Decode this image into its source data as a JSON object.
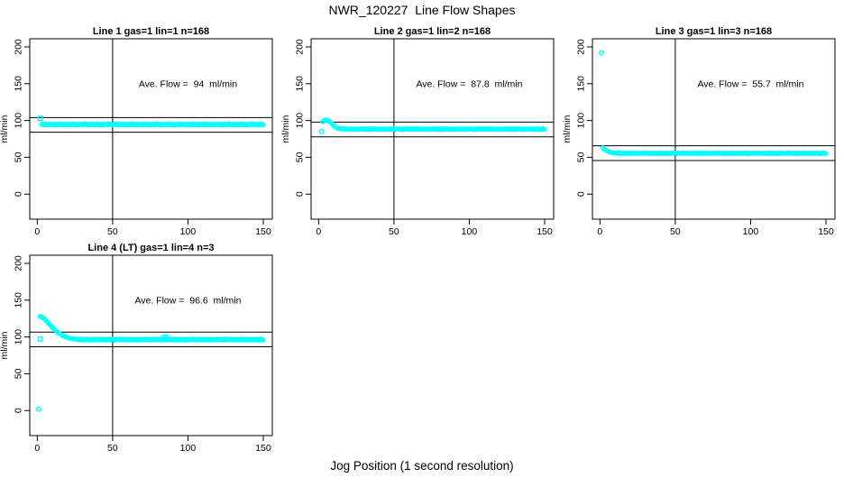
{
  "page": {
    "title": "NWR_120227  Line Flow Shapes",
    "xlabel": "Jog Position (1 second resolution)",
    "background": "#ffffff",
    "line_color": "#000000",
    "point_color": "#00ffff"
  },
  "chart_data": [
    {
      "type": "scatter",
      "title": "Line 1 gas=1 lin=1 n=168",
      "annotation": "Ave. Flow =  94  ml/min",
      "ave_flow": 94,
      "ylabel": "ml/min",
      "xlim": [
        -5,
        156
      ],
      "ylim": [
        -34,
        211
      ],
      "x_ticks": [
        0,
        50,
        100,
        150
      ],
      "y_ticks": [
        0,
        50,
        100,
        150,
        200
      ],
      "vline": 50,
      "hlines": [
        104,
        84
      ],
      "annotation_pos": {
        "x": 100,
        "y": 150
      },
      "singles": [
        {
          "x": 2,
          "y": 103,
          "marker": "square"
        }
      ],
      "series": {
        "x_start": 3,
        "x_step": 1,
        "y": [
          95,
          94.3,
          95.3,
          94,
          94.7,
          95.4,
          94.1,
          94.8,
          93.8,
          95.1,
          94.6,
          94.2,
          95.5,
          94.4,
          94.9,
          93.9,
          95,
          94.3,
          95.3,
          94,
          94.7,
          95.4,
          94.1,
          94.8,
          93.8,
          95.1,
          94.6,
          94.2,
          95.5,
          94.4,
          94.9,
          93.9,
          95,
          94.3,
          95.3,
          94,
          94.7,
          95.4,
          94.1,
          94.8,
          93.8,
          95.1,
          94.6,
          94.2,
          95.5,
          94.4,
          94.9,
          93.9,
          95,
          94.3,
          95.3,
          94,
          94.7,
          95.4,
          94.1,
          94.8,
          93.8,
          95.1,
          94.6,
          94.2,
          95.5,
          94.4,
          94.9,
          93.9,
          95,
          94.3,
          95.3,
          94,
          94.7,
          95.4,
          94.1,
          94.8,
          93.8,
          95.1,
          94.6,
          94.2,
          95.5,
          94.4,
          94.9,
          93.9,
          95,
          94.3,
          95.3,
          94,
          94.7,
          95.4,
          94.1,
          94.8,
          93.8,
          95.1,
          94.6,
          94.2,
          95.5,
          94.4,
          94.9,
          93.9,
          95,
          94.3,
          95.3,
          94,
          94.7,
          95.4,
          94.1,
          94.8,
          93.8,
          95.1,
          94.6,
          94.2,
          95.5,
          94.4,
          94.9,
          93.9,
          95,
          94.3,
          95.3,
          94,
          94.7,
          95.4,
          94.1,
          94.8,
          93.8,
          95.1,
          94.6,
          94.2,
          95.5,
          94.4,
          94.9,
          93.9,
          95,
          94.3,
          95.3,
          94,
          94.7,
          95.4,
          94.1,
          94.8,
          93.8,
          95.1,
          94.6,
          94.2,
          95.5,
          94.4,
          94.9,
          93.9,
          95,
          94.3,
          95.3,
          94
        ]
      }
    },
    {
      "type": "scatter",
      "title": "Line 2 gas=1 lin=2 n=168",
      "annotation": "Ave. Flow =  87.8  ml/min",
      "ave_flow": 87.8,
      "ylabel": "ml/min",
      "xlim": [
        -5,
        156
      ],
      "ylim": [
        -34,
        211
      ],
      "x_ticks": [
        0,
        50,
        100,
        150
      ],
      "y_ticks": [
        0,
        50,
        100,
        150,
        200
      ],
      "vline": 50,
      "hlines": [
        97.8,
        77.8
      ],
      "annotation_pos": {
        "x": 100,
        "y": 150
      },
      "singles": [
        {
          "x": 2,
          "y": 85,
          "marker": "circle"
        }
      ],
      "series": {
        "x_start": 3,
        "x_step": 1,
        "y": [
          98,
          100.2,
          100.8,
          100.4,
          99.3,
          97.5,
          95.4,
          93.3,
          91.6,
          90.3,
          89.4,
          88.9,
          88.6,
          88.6,
          88.1,
          88.9,
          87.8,
          88.4,
          89,
          87.9,
          88.5,
          87.7,
          88.7,
          88.3,
          88,
          89,
          88.2,
          88.6,
          87.8,
          88.6,
          88.1,
          88.9,
          87.8,
          88.4,
          89,
          87.9,
          88.5,
          87.7,
          88.7,
          88.3,
          88,
          89,
          88.2,
          88.6,
          87.8,
          88.6,
          88.1,
          88.9,
          87.8,
          88.4,
          89,
          87.9,
          88.5,
          87.7,
          88.7,
          88.3,
          88,
          89,
          88.2,
          88.6,
          87.8,
          88.6,
          88.1,
          88.9,
          87.8,
          88.4,
          89,
          87.9,
          88.5,
          87.7,
          88.7,
          88.3,
          88,
          89,
          88.2,
          88.6,
          87.8,
          88.6,
          88.1,
          88.9,
          87.8,
          88.4,
          89,
          87.9,
          88.5,
          87.7,
          88.7,
          88.3,
          88,
          89,
          88.2,
          88.6,
          87.8,
          88.6,
          88.1,
          88.9,
          87.8,
          88.4,
          89,
          87.9,
          88.5,
          87.7,
          88.7,
          88.3,
          88,
          89,
          88.2,
          88.6,
          87.8,
          88.6,
          88.1,
          88.9,
          87.8,
          88.4,
          89,
          87.9,
          88.5,
          87.7,
          88.7,
          88.3,
          88,
          89,
          88.2,
          88.6,
          87.8,
          88.6,
          88.1,
          88.9,
          87.8,
          88.4,
          89,
          87.9,
          88.5,
          87.7,
          88.7,
          88.3,
          88,
          89,
          88.2,
          88.6,
          87.8,
          88.6,
          88.1,
          88.9,
          87.8,
          88.4,
          89,
          87.9
        ]
      }
    },
    {
      "type": "scatter",
      "title": "Line 3 gas=1 lin=3 n=168",
      "annotation": "Ave. Flow =  55.7  ml/min",
      "ave_flow": 55.7,
      "ylabel": "ml/min",
      "xlim": [
        -5,
        156
      ],
      "ylim": [
        -34,
        211
      ],
      "x_ticks": [
        0,
        50,
        100,
        150
      ],
      "y_ticks": [
        0,
        50,
        100,
        150,
        200
      ],
      "vline": 50,
      "hlines": [
        65.7,
        45.7
      ],
      "annotation_pos": {
        "x": 100,
        "y": 150
      },
      "singles": [
        {
          "x": 1,
          "y": 192,
          "marker": "circle"
        }
      ],
      "series": {
        "x_start": 2,
        "x_step": 1,
        "y": [
          63,
          61.2,
          59.8,
          58.6,
          57.6,
          56.9,
          56.3,
          55.9,
          55.7,
          55.8,
          55.3,
          56,
          55.1,
          55.6,
          56.1,
          55.2,
          55.7,
          55,
          55.9,
          55.5,
          55.2,
          56.1,
          55.4,
          55.8,
          55.1,
          55.8,
          55.3,
          56,
          55.1,
          55.6,
          56.1,
          55.2,
          55.7,
          55,
          55.9,
          55.5,
          55.2,
          56.1,
          55.4,
          55.8,
          55.1,
          55.8,
          55.3,
          56,
          55.1,
          55.6,
          56.1,
          55.2,
          55.7,
          55,
          55.9,
          55.5,
          55.2,
          56.1,
          55.4,
          55.8,
          55.1,
          55.8,
          55.3,
          56,
          55.1,
          55.6,
          56.1,
          55.2,
          55.7,
          55,
          55.9,
          55.5,
          55.2,
          56.1,
          55.4,
          55.8,
          55.1,
          55.8,
          55.3,
          56,
          55.1,
          55.6,
          56.1,
          55.2,
          55.7,
          55,
          55.9,
          55.5,
          55.2,
          56.1,
          55.4,
          55.8,
          55.1,
          55.8,
          55.3,
          56,
          55.1,
          55.6,
          56.1,
          55.2,
          55.7,
          55,
          55.9,
          55.5,
          55.2,
          56.1,
          55.4,
          55.8,
          55.1,
          55.8,
          55.3,
          56,
          55.1,
          55.6,
          56.1,
          55.2,
          55.7,
          55,
          55.9,
          55.5,
          55.2,
          56.1,
          55.4,
          55.8,
          55.1,
          55.8,
          55.3,
          56,
          55.1,
          55.6,
          56.1,
          55.2,
          55.7,
          55,
          55.9,
          55.5,
          55.2,
          56.1,
          55.4,
          55.8,
          55.1,
          55.8,
          55.3,
          56,
          55.1,
          55.6,
          56.1,
          55.2,
          55.7,
          55,
          55.9,
          55.5,
          55.2
        ]
      }
    },
    {
      "type": "scatter",
      "title": "Line 4 (LT) gas=1 lin=4 n=3",
      "annotation": "Ave. Flow =  96.6  ml/min",
      "ave_flow": 96.6,
      "ylabel": "ml/min",
      "xlim": [
        -5,
        156
      ],
      "ylim": [
        -34,
        211
      ],
      "x_ticks": [
        0,
        50,
        100,
        150
      ],
      "y_ticks": [
        0,
        50,
        100,
        150,
        200
      ],
      "vline": 50,
      "hlines": [
        106.6,
        86.6
      ],
      "annotation_pos": {
        "x": 100,
        "y": 150
      },
      "singles": [
        {
          "x": 1,
          "y": 2,
          "marker": "circle"
        },
        {
          "x": 2,
          "y": 97,
          "marker": "square"
        },
        {
          "x": 84,
          "y": 99.6,
          "marker": "circle"
        },
        {
          "x": 85,
          "y": 100.2,
          "marker": "circle"
        },
        {
          "x": 86,
          "y": 99.4,
          "marker": "circle"
        }
      ],
      "series": {
        "x_start": 2,
        "x_step": 1,
        "y": [
          128,
          127.2,
          125.8,
          124,
          122,
          119.8,
          117.6,
          115.4,
          113.2,
          111.1,
          109.2,
          107.4,
          105.8,
          104.3,
          103,
          101.9,
          100.9,
          100.1,
          99.4,
          98.8,
          98.3,
          97.9,
          97.5,
          97.2,
          97,
          96.9,
          96,
          97.2,
          95.7,
          96.6,
          97.3,
          95.9,
          96.7,
          95.5,
          97,
          96.4,
          96,
          97.4,
          96.2,
          96.8,
          95.6,
          96.9,
          96,
          97.2,
          95.7,
          96.6,
          97.3,
          95.9,
          96.7,
          95.5,
          97,
          96.4,
          96,
          97.4,
          96.2,
          96.8,
          95.6,
          96.9,
          96,
          97.2,
          95.7,
          96.6,
          97.3,
          95.9,
          96.7,
          95.5,
          97,
          96.4,
          96,
          97.4,
          96.2,
          96.8,
          95.6,
          96.9,
          96,
          97.2,
          95.7,
          96.6,
          97.3,
          95.9,
          96.7,
          95.5,
          97,
          96.4,
          96,
          97.4,
          96.2,
          96.8,
          95.6,
          96.9,
          96,
          97.2,
          95.7,
          96.6,
          97.3,
          95.9,
          96.7,
          95.5,
          97,
          96.4,
          96,
          97.4,
          96.2,
          96.8,
          95.6,
          96.9,
          96,
          97.2,
          95.7,
          96.6,
          97.3,
          95.9,
          96.7,
          95.5,
          97,
          96.4,
          96,
          97.4,
          96.2,
          96.8,
          95.6,
          96.9,
          96,
          97.2,
          95.7,
          96.6,
          97.3,
          95.9,
          96.7,
          95.5,
          97,
          96.4,
          96,
          97.4,
          96.2,
          96.8,
          95.6,
          96.9,
          96,
          97.2,
          95.7,
          96.6,
          97.3,
          95.9,
          96.7,
          95.5,
          97,
          96.4,
          96
        ]
      }
    }
  ]
}
